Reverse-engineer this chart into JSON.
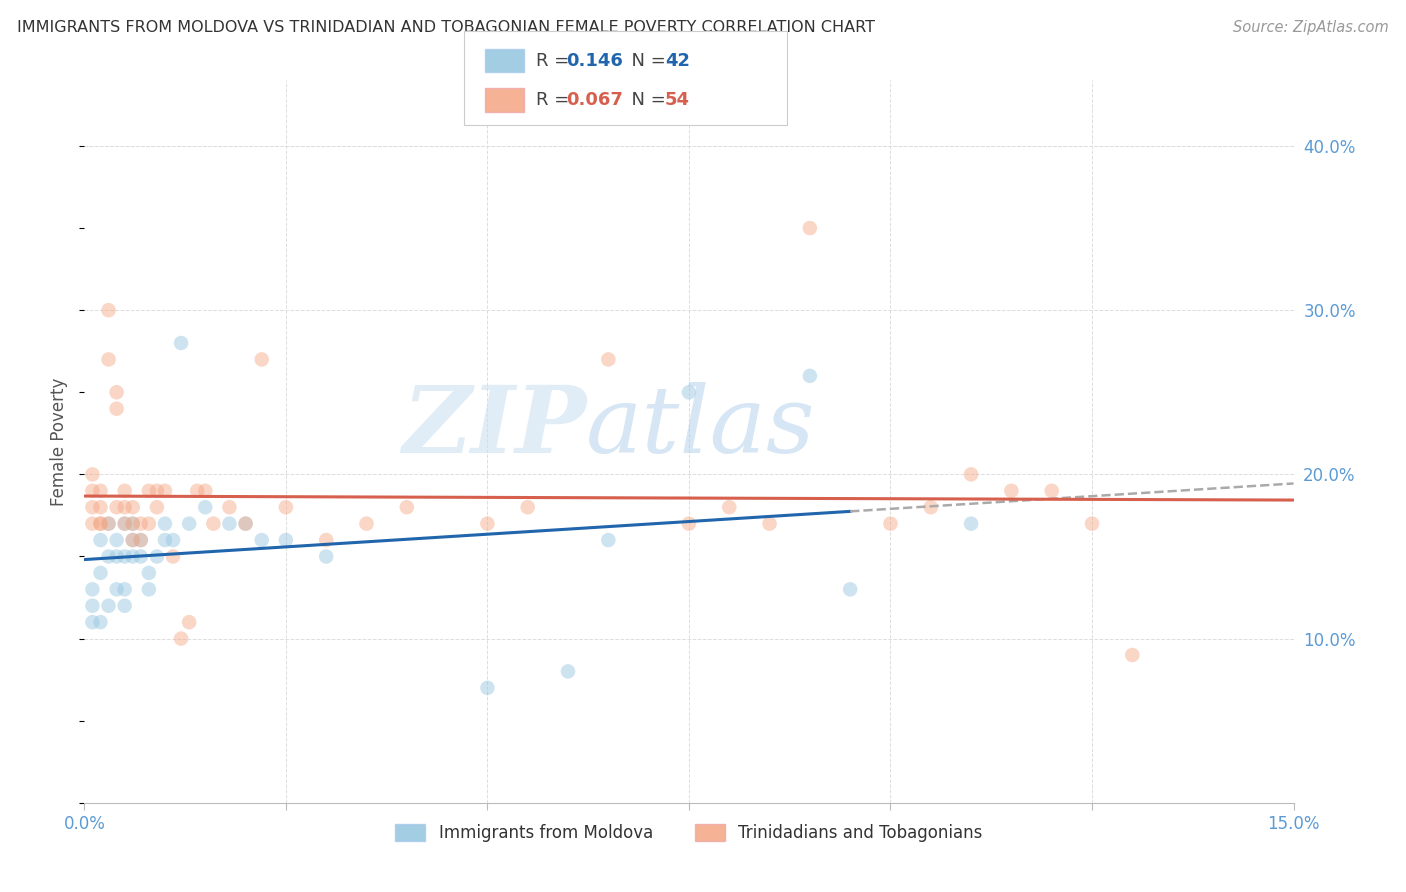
{
  "title": "IMMIGRANTS FROM MOLDOVA VS TRINIDADIAN AND TOBAGONIAN FEMALE POVERTY CORRELATION CHART",
  "source": "Source: ZipAtlas.com",
  "ylabel": "Female Poverty",
  "ylabel_right": [
    "40.0%",
    "30.0%",
    "20.0%",
    "10.0%"
  ],
  "ylabel_right_vals": [
    0.4,
    0.3,
    0.2,
    0.1
  ],
  "xmin": 0.0,
  "xmax": 0.15,
  "ymin": 0.0,
  "ymax": 0.44,
  "legend_label1": "Immigrants from Moldova",
  "legend_label2": "Trinidadians and Tobagonians",
  "blue_color": "#92c5de",
  "pink_color": "#f4a582",
  "blue_line_color": "#2166ac",
  "pink_line_color": "#d6604d",
  "dashed_line_color": "#aaaaaa",
  "blue_x": [
    0.001,
    0.001,
    0.001,
    0.002,
    0.002,
    0.002,
    0.003,
    0.003,
    0.003,
    0.004,
    0.004,
    0.004,
    0.005,
    0.005,
    0.005,
    0.005,
    0.006,
    0.006,
    0.006,
    0.007,
    0.007,
    0.008,
    0.008,
    0.009,
    0.01,
    0.01,
    0.011,
    0.012,
    0.013,
    0.015,
    0.018,
    0.02,
    0.022,
    0.025,
    0.03,
    0.05,
    0.06,
    0.065,
    0.075,
    0.09,
    0.095,
    0.11
  ],
  "blue_y": [
    0.13,
    0.11,
    0.12,
    0.16,
    0.14,
    0.11,
    0.15,
    0.17,
    0.12,
    0.16,
    0.15,
    0.13,
    0.15,
    0.13,
    0.12,
    0.17,
    0.16,
    0.15,
    0.17,
    0.15,
    0.16,
    0.14,
    0.13,
    0.15,
    0.16,
    0.17,
    0.16,
    0.28,
    0.17,
    0.18,
    0.17,
    0.17,
    0.16,
    0.16,
    0.15,
    0.07,
    0.08,
    0.16,
    0.25,
    0.26,
    0.13,
    0.17
  ],
  "pink_x": [
    0.001,
    0.001,
    0.001,
    0.001,
    0.002,
    0.002,
    0.002,
    0.002,
    0.003,
    0.003,
    0.003,
    0.004,
    0.004,
    0.004,
    0.005,
    0.005,
    0.005,
    0.006,
    0.006,
    0.006,
    0.007,
    0.007,
    0.008,
    0.008,
    0.009,
    0.009,
    0.01,
    0.011,
    0.012,
    0.013,
    0.014,
    0.015,
    0.016,
    0.018,
    0.02,
    0.022,
    0.025,
    0.03,
    0.035,
    0.04,
    0.05,
    0.055,
    0.065,
    0.075,
    0.08,
    0.085,
    0.09,
    0.1,
    0.105,
    0.11,
    0.115,
    0.12,
    0.125,
    0.13
  ],
  "pink_y": [
    0.17,
    0.18,
    0.19,
    0.2,
    0.17,
    0.18,
    0.19,
    0.17,
    0.3,
    0.27,
    0.17,
    0.25,
    0.24,
    0.18,
    0.18,
    0.17,
    0.19,
    0.17,
    0.18,
    0.16,
    0.16,
    0.17,
    0.19,
    0.17,
    0.19,
    0.18,
    0.19,
    0.15,
    0.1,
    0.11,
    0.19,
    0.19,
    0.17,
    0.18,
    0.17,
    0.27,
    0.18,
    0.16,
    0.17,
    0.18,
    0.17,
    0.18,
    0.27,
    0.17,
    0.18,
    0.17,
    0.35,
    0.17,
    0.18,
    0.2,
    0.19,
    0.19,
    0.17,
    0.09
  ],
  "watermark_zip": "ZIP",
  "watermark_atlas": "atlas",
  "blue_line_xstart": 0.0,
  "blue_line_xend": 0.095,
  "blue_dash_xstart": 0.095,
  "blue_dash_xend": 0.15,
  "marker_size": 110,
  "marker_alpha": 0.45
}
